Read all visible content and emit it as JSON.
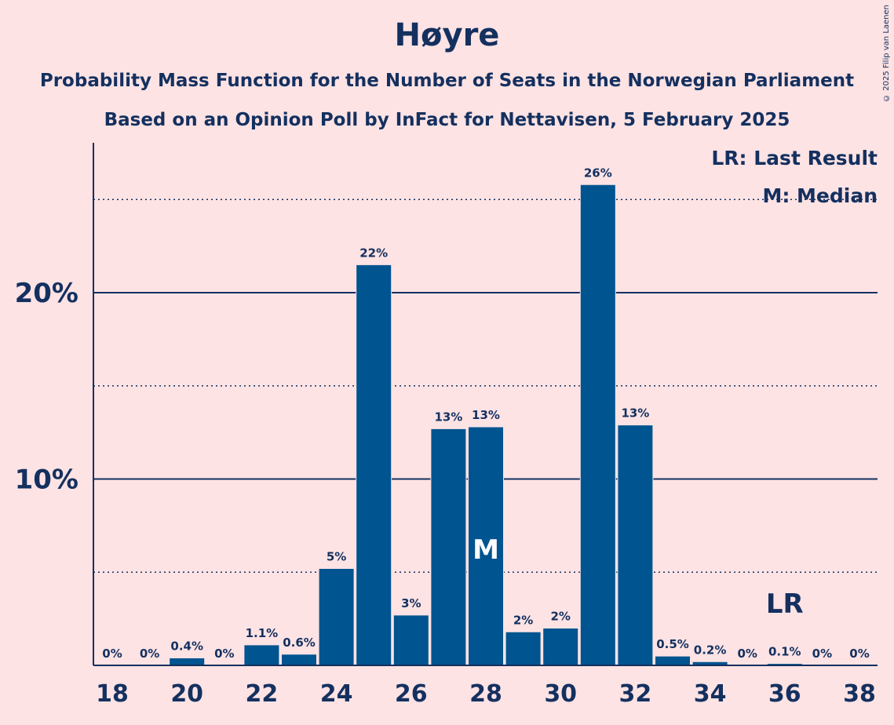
{
  "header": {
    "title": "Høyre",
    "subtitle_line1": "Probability Mass Function for the Number of Seats in the Norwegian Parliament",
    "subtitle_line2": "Based on an Opinion Poll by InFact for Nettavisen, 5 February 2025",
    "copyright": "© 2025 Filip van Laenen"
  },
  "legend": {
    "last_result": "LR: Last Result",
    "median": "M: Median"
  },
  "colors": {
    "background": "#FDE3E4",
    "bar": "#00548F",
    "text": "#14305F"
  },
  "chart_data": {
    "type": "bar",
    "x": [
      18,
      19,
      20,
      21,
      22,
      23,
      24,
      25,
      26,
      27,
      28,
      29,
      30,
      31,
      32,
      33,
      34,
      35,
      36,
      37,
      38
    ],
    "values": [
      0,
      0,
      0.4,
      0,
      1.1,
      0.6,
      5.2,
      21.5,
      2.7,
      12.7,
      12.8,
      1.8,
      2.0,
      25.8,
      12.9,
      0.5,
      0.2,
      0,
      0.1,
      0,
      0
    ],
    "data_labels": [
      "0%",
      "0%",
      "0.4%",
      "0%",
      "1.1%",
      "0.6%",
      "5%",
      "22%",
      "3%",
      "13%",
      "13%",
      "2%",
      "2%",
      "26%",
      "13%",
      "0.5%",
      "0.2%",
      "0%",
      "0.1%",
      "0%",
      "0%"
    ],
    "x_tick_labels": [
      "18",
      "20",
      "22",
      "24",
      "26",
      "28",
      "30",
      "32",
      "34",
      "36",
      "38"
    ],
    "y_tick_labels": [
      "10%",
      "20%"
    ],
    "y_major_ticks": [
      10,
      20
    ],
    "y_minor_gridlines": [
      5,
      15,
      25
    ],
    "ylim": [
      0,
      28
    ],
    "median": {
      "x": 28,
      "label": "M"
    },
    "last_result": {
      "x": 36,
      "label": "LR"
    },
    "xlabel": "",
    "ylabel": ""
  }
}
